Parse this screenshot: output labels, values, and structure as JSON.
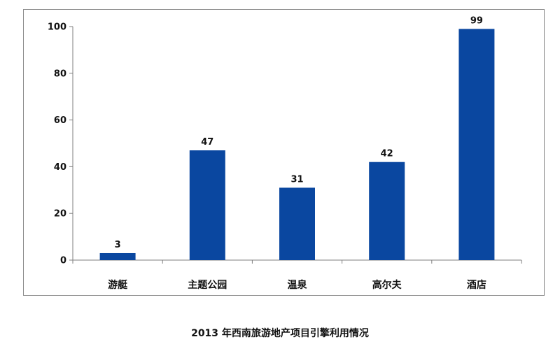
{
  "chart_data": {
    "type": "bar",
    "title": "2013 年西南旅游地产项目引擎利用情况",
    "categories": [
      "游艇",
      "主题公园",
      "温泉",
      "高尔夫",
      "酒店"
    ],
    "values": [
      3,
      47,
      31,
      42,
      99
    ],
    "data_labels": [
      "3",
      "47",
      "31",
      "42",
      "99"
    ],
    "y_ticks": [
      "0",
      "20",
      "40",
      "60",
      "80",
      "100"
    ],
    "ylim": [
      0,
      100
    ],
    "xlabel": "",
    "ylabel": "",
    "grid": false,
    "legend": "none",
    "bar_color": "#0a47a0"
  }
}
